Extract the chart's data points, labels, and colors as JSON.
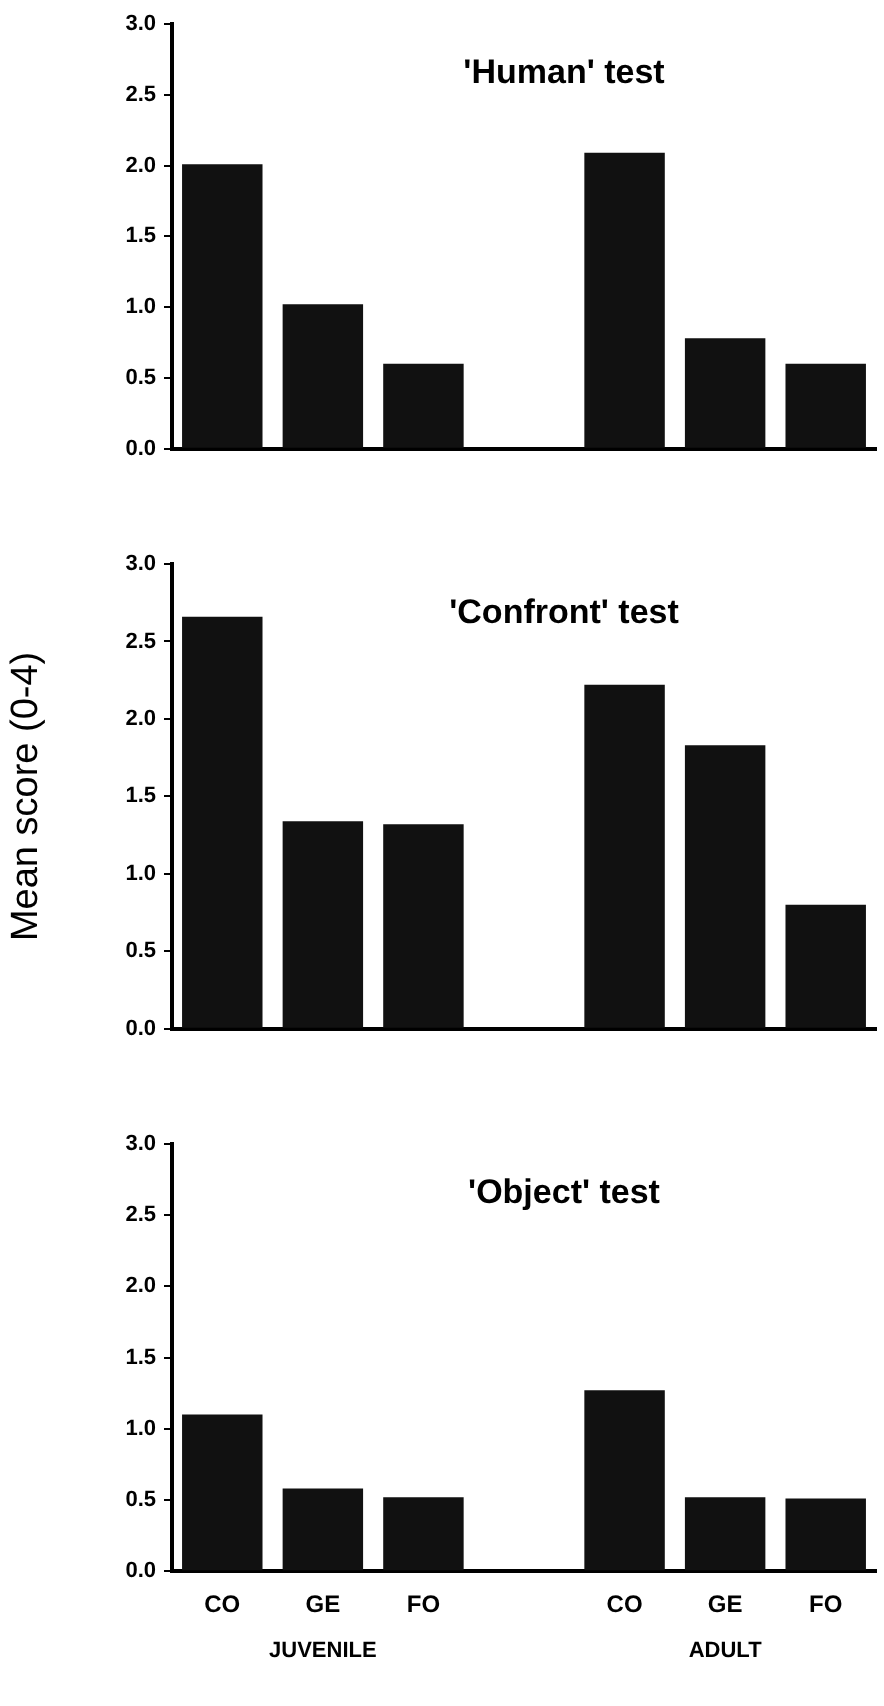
{
  "chart_data": [
    {
      "type": "bar",
      "title": "'Human' test",
      "categories": [
        null,
        null,
        null,
        null,
        null,
        null,
        null
      ],
      "values": [
        2.01,
        1.02,
        0.6,
        null,
        2.09,
        0.78,
        0.6
      ],
      "color": "#111111",
      "ylim": [
        0,
        3
      ],
      "yticks": [
        {
          "value": 0,
          "label": "0.0"
        },
        {
          "value": 0.5,
          "label": "0.5"
        },
        {
          "value": 1,
          "label": "1.0"
        },
        {
          "value": 1.5,
          "label": "1.5"
        },
        {
          "value": 2,
          "label": "2.0"
        },
        {
          "value": 2.5,
          "label": "2.5"
        },
        {
          "value": 3,
          "label": "3.0"
        }
      ],
      "grid": false,
      "legend": false,
      "tick_labels": "y"
    },
    {
      "type": "bar",
      "title": "'Confront' test",
      "ylabel": "Mean score (0-4)",
      "categories": [
        null,
        null,
        null,
        null,
        null,
        null,
        null
      ],
      "values": [
        2.66,
        1.34,
        1.32,
        null,
        2.22,
        1.83,
        0.8
      ],
      "color": "#111111",
      "ylim": [
        0,
        3
      ],
      "yticks": [
        {
          "value": 0,
          "label": "0.0"
        },
        {
          "value": 0.5,
          "label": "0.5"
        },
        {
          "value": 1,
          "label": "1.0"
        },
        {
          "value": 1.5,
          "label": "1.5"
        },
        {
          "value": 2,
          "label": "2.0"
        },
        {
          "value": 2.5,
          "label": "2.5"
        },
        {
          "value": 3,
          "label": "3.0"
        }
      ],
      "grid": false,
      "legend": false,
      "tick_labels": "y"
    },
    {
      "type": "bar",
      "title": "'Object' test",
      "categories": [
        "CO",
        "GE",
        "FO",
        null,
        "CO",
        "GE",
        "FO"
      ],
      "values": [
        1.1,
        0.58,
        0.52,
        null,
        1.27,
        0.52,
        0.51
      ],
      "color": "#111111",
      "ylim": [
        0,
        3
      ],
      "yticks": [
        {
          "value": 0,
          "label": "0.0"
        },
        {
          "value": 0.5,
          "label": "0.5"
        },
        {
          "value": 1,
          "label": "1.0"
        },
        {
          "value": 1.5,
          "label": "1.5"
        },
        {
          "value": 2,
          "label": "2.0"
        },
        {
          "value": 2.5,
          "label": "2.5"
        },
        {
          "value": 3,
          "label": "3.0"
        }
      ],
      "grid": false,
      "legend": false,
      "annotations": [
        "JUVENILE",
        "ADULT"
      ]
    }
  ]
}
